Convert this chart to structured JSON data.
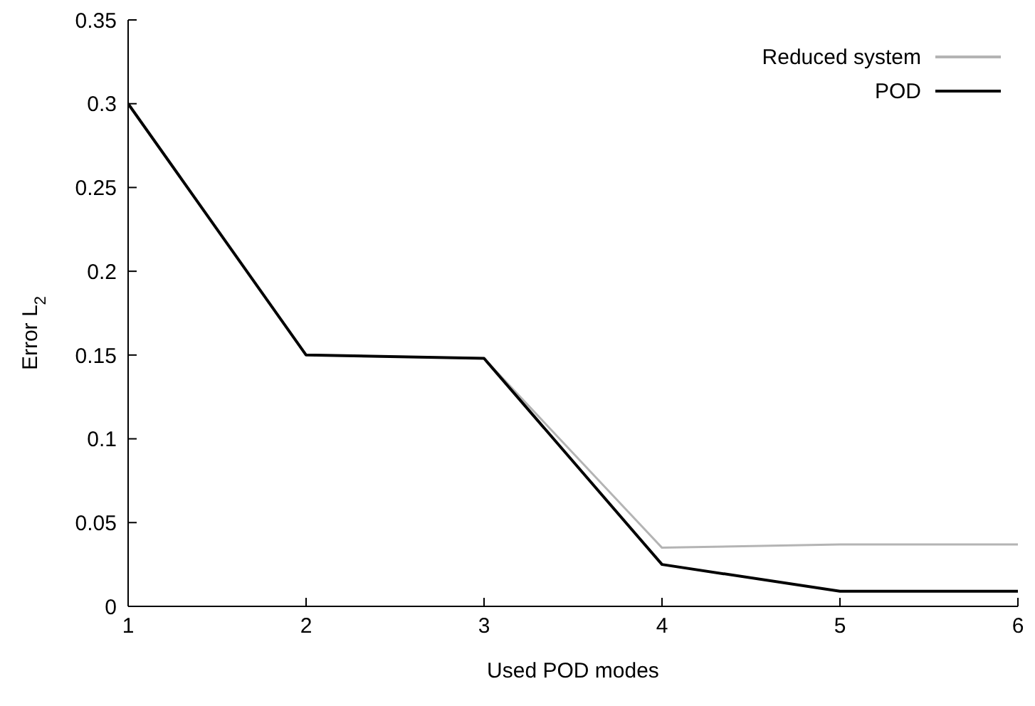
{
  "chart_data": {
    "type": "line",
    "xlabel": "Used POD modes",
    "ylabel": "Error L$_{2}$",
    "x": [
      1,
      2,
      3,
      4,
      5,
      6
    ],
    "series": [
      {
        "name": "Reduced system",
        "color": "#b4b4b4",
        "values": [
          0.3,
          0.15,
          0.148,
          0.035,
          0.037,
          0.037
        ]
      },
      {
        "name": "POD",
        "color": "#000000",
        "values": [
          0.3,
          0.15,
          0.148,
          0.025,
          0.009,
          0.009
        ]
      }
    ],
    "xlim": [
      1,
      6
    ],
    "xticks": [
      1,
      2,
      3,
      4,
      5,
      6
    ],
    "ylim": [
      0,
      0.35
    ],
    "yticks": [
      0,
      0.05,
      0.1,
      0.15,
      0.2,
      0.25,
      0.3,
      0.35
    ],
    "grid": false,
    "legend": "top right",
    "marker": "none",
    "line_style": "solid"
  }
}
